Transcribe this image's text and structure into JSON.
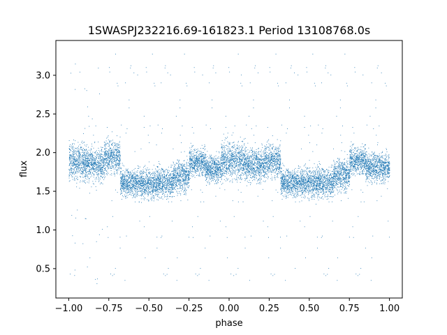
{
  "chart_data": {
    "type": "scatter",
    "title": "1SWASPJ232216.69-161823.1 Period 13108768.0s",
    "xlabel": "phase",
    "ylabel": "flux",
    "xlim": [
      -1.08,
      1.08
    ],
    "ylim": [
      0.12,
      3.45
    ],
    "x_ticks": [
      -1.0,
      -0.75,
      -0.5,
      -0.25,
      0.0,
      0.25,
      0.5,
      0.75,
      1.0
    ],
    "x_tick_labels": [
      "−1.00",
      "−0.75",
      "−0.50",
      "−0.25",
      "0.00",
      "0.25",
      "0.50",
      "0.75",
      "1.00"
    ],
    "y_ticks": [
      0.5,
      1.0,
      1.5,
      2.0,
      2.5,
      3.0
    ],
    "y_tick_labels": [
      "0.5",
      "1.0",
      "1.5",
      "2.0",
      "2.5",
      "3.0"
    ],
    "grid": false,
    "marker_color": "#1f77b4",
    "clusters": [
      {
        "phase_range": [
          -1.0,
          -0.9
        ],
        "flux_center": 1.88,
        "flux_spread": 0.28
      },
      {
        "phase_range": [
          -0.9,
          -0.78
        ],
        "flux_center": 1.85,
        "flux_spread": 0.25
      },
      {
        "phase_range": [
          -0.78,
          -0.68
        ],
        "flux_center": 1.95,
        "flux_spread": 0.25
      },
      {
        "phase_range": [
          -0.68,
          -0.55
        ],
        "flux_center": 1.62,
        "flux_spread": 0.2
      },
      {
        "phase_range": [
          -0.55,
          -0.45
        ],
        "flux_center": 1.6,
        "flux_spread": 0.22
      },
      {
        "phase_range": [
          -0.45,
          -0.35
        ],
        "flux_center": 1.62,
        "flux_spread": 0.22
      },
      {
        "phase_range": [
          -0.35,
          -0.25
        ],
        "flux_center": 1.7,
        "flux_spread": 0.24
      },
      {
        "phase_range": [
          -0.25,
          -0.15
        ],
        "flux_center": 1.88,
        "flux_spread": 0.2
      },
      {
        "phase_range": [
          -0.15,
          -0.05
        ],
        "flux_center": 1.8,
        "flux_spread": 0.2
      },
      {
        "phase_range": [
          -0.05,
          0.1
        ],
        "flux_center": 1.9,
        "flux_spread": 0.28
      },
      {
        "phase_range": [
          0.1,
          0.22
        ],
        "flux_center": 1.85,
        "flux_spread": 0.25
      },
      {
        "phase_range": [
          0.22,
          0.32
        ],
        "flux_center": 1.9,
        "flux_spread": 0.25
      },
      {
        "phase_range": [
          0.32,
          0.45
        ],
        "flux_center": 1.62,
        "flux_spread": 0.2
      },
      {
        "phase_range": [
          0.45,
          0.55
        ],
        "flux_center": 1.62,
        "flux_spread": 0.22
      },
      {
        "phase_range": [
          0.55,
          0.65
        ],
        "flux_center": 1.62,
        "flux_spread": 0.22
      },
      {
        "phase_range": [
          0.65,
          0.75
        ],
        "flux_center": 1.72,
        "flux_spread": 0.24
      },
      {
        "phase_range": [
          0.75,
          0.85
        ],
        "flux_center": 1.9,
        "flux_spread": 0.2
      },
      {
        "phase_range": [
          0.85,
          1.0
        ],
        "flux_center": 1.82,
        "flux_spread": 0.22
      }
    ]
  }
}
